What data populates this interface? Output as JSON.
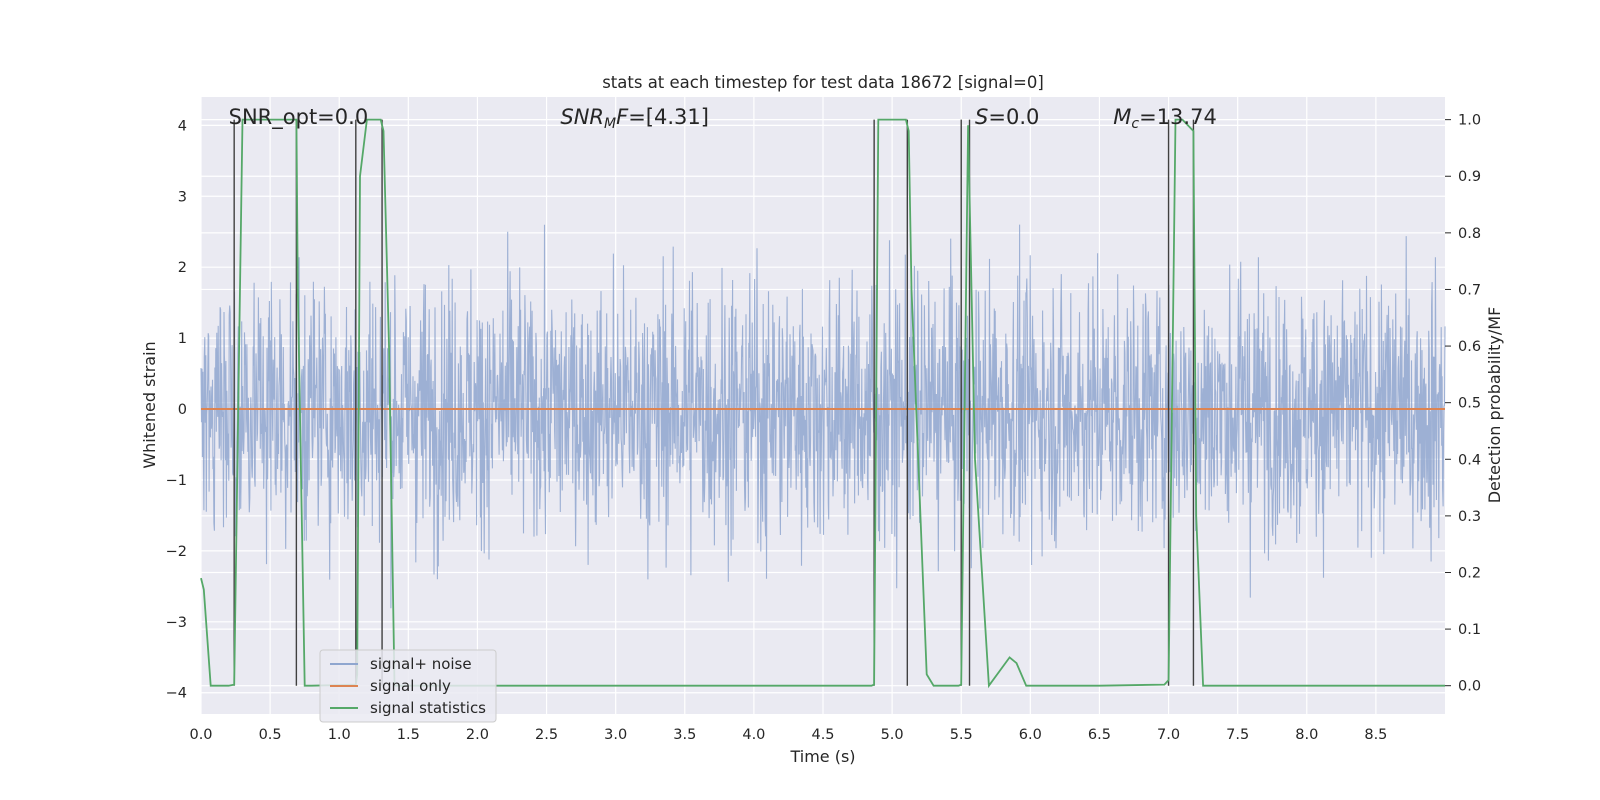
{
  "chart_data": {
    "type": "line",
    "title": "stats at each timestep for test data 18672 [signal=0]",
    "xlabel": "Time (s)",
    "ylabel_left": "Whitened strain",
    "ylabel_right": "Detection probability/MF",
    "xlim": [
      0.0,
      9.0
    ],
    "ylim_left": [
      -4.3,
      4.4
    ],
    "ylim_right": [
      -0.05,
      1.04
    ],
    "grid": true,
    "legend_position": "lower-left",
    "x_ticks": [
      "0.0",
      "0.5",
      "1.0",
      "1.5",
      "2.0",
      "2.5",
      "3.0",
      "3.5",
      "4.0",
      "4.5",
      "5.0",
      "5.5",
      "6.0",
      "6.5",
      "7.0",
      "7.5",
      "8.0",
      "8.5"
    ],
    "y_ticks_left": [
      "4",
      "3",
      "2",
      "1",
      "0",
      "−1",
      "−2",
      "−3",
      "−4"
    ],
    "y_ticks_right": [
      "1.0",
      "0.9",
      "0.8",
      "0.7",
      "0.6",
      "0.5",
      "0.4",
      "0.3",
      "0.2",
      "0.1",
      "0.0"
    ],
    "annotations": [
      {
        "id": "snr-opt",
        "x": 0.2,
        "text": "SNR_opt=0.0"
      },
      {
        "id": "snr-mf",
        "x": 2.6,
        "text": "SNR_MF=[4.31]"
      },
      {
        "id": "s-value",
        "x": 5.6,
        "text": "S=0.0"
      },
      {
        "id": "mc-value",
        "x": 6.6,
        "text": "M_c=13.74"
      }
    ],
    "series": [
      {
        "name": "signal+ noise",
        "axis": "left",
        "color": "#8fa6cf",
        "description_amplitude_envelope": [
          2.5,
          2.7,
          3.0,
          2.8,
          3.4,
          2.6,
          3.6,
          2.9,
          3.1,
          3.8,
          2.7,
          3.3,
          2.9,
          3.5,
          2.8,
          3.0,
          2.6,
          3.2,
          2.9,
          3.6,
          2.7
        ]
      },
      {
        "name": "signal only",
        "axis": "left",
        "color": "#dd8452",
        "x": [
          0.0,
          9.0
        ],
        "y": [
          0.0,
          0.0
        ]
      },
      {
        "name": "signal statistics",
        "axis": "right",
        "color": "#55a868",
        "x": [
          0.0,
          0.02,
          0.07,
          0.2,
          0.24,
          0.27,
          0.3,
          0.69,
          0.7,
          0.75,
          0.8,
          1.12,
          1.13,
          1.15,
          1.2,
          1.3,
          1.32,
          1.36,
          1.4,
          4.85,
          4.87,
          4.9,
          4.95,
          5.1,
          5.12,
          5.14,
          5.25,
          5.3,
          5.48,
          5.5,
          5.55,
          5.6,
          5.7,
          5.85,
          5.9,
          5.97,
          6.5,
          6.97,
          7.0,
          7.05,
          7.1,
          7.18,
          7.2,
          7.25,
          9.0
        ],
        "y": [
          0.19,
          0.17,
          0.0,
          0.0,
          0.002,
          0.5,
          1.0,
          1.0,
          0.7,
          0.0,
          0.0,
          0.002,
          0.02,
          0.9,
          1.0,
          1.0,
          0.98,
          0.6,
          0.0,
          0.0,
          0.002,
          1.0,
          1.0,
          1.0,
          0.98,
          0.7,
          0.02,
          0.0,
          0.0,
          0.002,
          0.99,
          0.4,
          0.0,
          0.05,
          0.04,
          0.0,
          0.0,
          0.002,
          0.01,
          1.0,
          1.0,
          0.98,
          0.3,
          0.0,
          0.0
        ]
      },
      {
        "name": "",
        "axis": "right",
        "color": "#404040",
        "type": "vlines",
        "x": [
          0.24,
          0.69,
          1.12,
          1.31,
          4.87,
          5.11,
          5.5,
          5.56,
          7.0,
          7.18
        ]
      }
    ]
  }
}
